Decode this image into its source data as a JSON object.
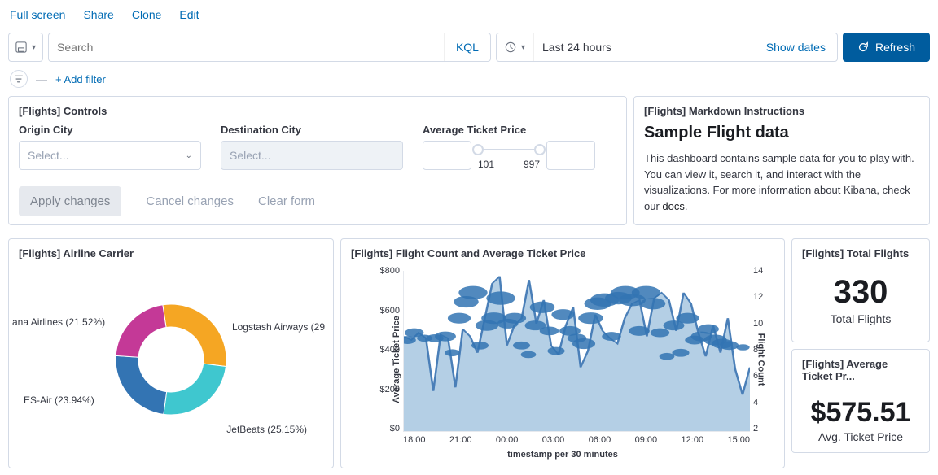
{
  "top_links": {
    "full_screen": "Full screen",
    "share": "Share",
    "clone": "Clone",
    "edit": "Edit"
  },
  "query_bar": {
    "search_placeholder": "Search",
    "kql": "KQL",
    "time_label": "Last 24 hours",
    "show_dates": "Show dates",
    "refresh": "Refresh"
  },
  "filter_bar": {
    "add_filter": "+ Add filter"
  },
  "controls_panel": {
    "title": "[Flights] Controls",
    "origin_label": "Origin City",
    "dest_label": "Destination City",
    "price_label": "Average Ticket Price",
    "select_placeholder": "Select...",
    "slider_min": "101",
    "slider_max": "997",
    "apply": "Apply changes",
    "cancel": "Cancel changes",
    "clear": "Clear form"
  },
  "markdown_panel": {
    "title": "[Flights] Markdown Instructions",
    "heading": "Sample Flight data",
    "body_1": "This dashboard contains sample data for you to play with. You can view it, search it, and interact with the visualizations. For more information about Kibana, check our ",
    "docs_link": "docs",
    "body_2": "."
  },
  "airline_panel": {
    "title": "[Flights] Airline Carrier",
    "donut": {
      "segments": [
        {
          "label": "Logstash Airways (29",
          "value": 29.39,
          "color": "#f5a623"
        },
        {
          "label": "JetBeats (25.15%)",
          "value": 25.15,
          "color": "#3fc7cf"
        },
        {
          "label": "ES-Air (23.94%)",
          "value": 23.94,
          "color": "#3374b3"
        },
        {
          "label": "ana Airlines (21.52%)",
          "value": 21.52,
          "color": "#c43997"
        }
      ],
      "inner_radius": 40,
      "outer_radius": 68
    }
  },
  "combo_panel": {
    "title": "[Flights] Flight Count and Average Ticket Price",
    "y_ticks": [
      "$800",
      "$600",
      "$400",
      "$200",
      "$0"
    ],
    "y2_ticks": [
      "14",
      "12",
      "10",
      "8",
      "6",
      "4",
      "2"
    ],
    "x_ticks": [
      "18:00",
      "21:00",
      "00:00",
      "03:00",
      "06:00",
      "09:00",
      "12:00",
      "15:00"
    ],
    "y_title": "Average Ticket Price",
    "y2_title": "Flight Count",
    "x_title": "timestamp per 30 minutes",
    "area_color": "#a7c7e1",
    "area_stroke": "#4a7fb8",
    "bubble_color": "#3374b3",
    "area_values": [
      520,
      500,
      540,
      510,
      220,
      530,
      510,
      240,
      560,
      520,
      430,
      620,
      810,
      850,
      470,
      580,
      620,
      830,
      590,
      720,
      470,
      420,
      580,
      680,
      350,
      440,
      640,
      550,
      510,
      480,
      620,
      700,
      720,
      520,
      730,
      760,
      720,
      550,
      760,
      700,
      540,
      410,
      580,
      430,
      620,
      340,
      200,
      350
    ],
    "bubbles": [
      {
        "x": 0.01,
        "y": 500,
        "c": 6
      },
      {
        "x": 0.03,
        "y": 540,
        "c": 7
      },
      {
        "x": 0.06,
        "y": 510,
        "c": 5
      },
      {
        "x": 0.09,
        "y": 510,
        "c": 6
      },
      {
        "x": 0.12,
        "y": 520,
        "c": 8
      },
      {
        "x": 0.14,
        "y": 430,
        "c": 5
      },
      {
        "x": 0.16,
        "y": 620,
        "c": 9
      },
      {
        "x": 0.18,
        "y": 710,
        "c": 10
      },
      {
        "x": 0.2,
        "y": 760,
        "c": 12
      },
      {
        "x": 0.22,
        "y": 470,
        "c": 6
      },
      {
        "x": 0.24,
        "y": 580,
        "c": 9
      },
      {
        "x": 0.26,
        "y": 620,
        "c": 10
      },
      {
        "x": 0.28,
        "y": 730,
        "c": 12
      },
      {
        "x": 0.3,
        "y": 590,
        "c": 8
      },
      {
        "x": 0.32,
        "y": 620,
        "c": 9
      },
      {
        "x": 0.34,
        "y": 470,
        "c": 6
      },
      {
        "x": 0.36,
        "y": 420,
        "c": 5
      },
      {
        "x": 0.38,
        "y": 580,
        "c": 8
      },
      {
        "x": 0.4,
        "y": 680,
        "c": 10
      },
      {
        "x": 0.42,
        "y": 550,
        "c": 7
      },
      {
        "x": 0.44,
        "y": 440,
        "c": 6
      },
      {
        "x": 0.46,
        "y": 640,
        "c": 9
      },
      {
        "x": 0.48,
        "y": 550,
        "c": 8
      },
      {
        "x": 0.5,
        "y": 510,
        "c": 7
      },
      {
        "x": 0.52,
        "y": 480,
        "c": 9
      },
      {
        "x": 0.54,
        "y": 620,
        "c": 10
      },
      {
        "x": 0.56,
        "y": 700,
        "c": 11
      },
      {
        "x": 0.58,
        "y": 720,
        "c": 12
      },
      {
        "x": 0.6,
        "y": 520,
        "c": 7
      },
      {
        "x": 0.62,
        "y": 730,
        "c": 11
      },
      {
        "x": 0.64,
        "y": 760,
        "c": 12
      },
      {
        "x": 0.66,
        "y": 720,
        "c": 11
      },
      {
        "x": 0.68,
        "y": 550,
        "c": 8
      },
      {
        "x": 0.7,
        "y": 760,
        "c": 12
      },
      {
        "x": 0.72,
        "y": 700,
        "c": 10
      },
      {
        "x": 0.74,
        "y": 540,
        "c": 7
      },
      {
        "x": 0.76,
        "y": 410,
        "c": 5
      },
      {
        "x": 0.78,
        "y": 580,
        "c": 8
      },
      {
        "x": 0.8,
        "y": 430,
        "c": 6
      },
      {
        "x": 0.82,
        "y": 620,
        "c": 9
      },
      {
        "x": 0.84,
        "y": 500,
        "c": 7
      },
      {
        "x": 0.86,
        "y": 520,
        "c": 8
      },
      {
        "x": 0.88,
        "y": 560,
        "c": 8
      },
      {
        "x": 0.9,
        "y": 500,
        "c": 9
      },
      {
        "x": 0.92,
        "y": 480,
        "c": 8
      },
      {
        "x": 0.94,
        "y": 470,
        "c": 7
      },
      {
        "x": 0.98,
        "y": 460,
        "c": 4
      }
    ]
  },
  "total_flights_panel": {
    "title": "[Flights] Total Flights",
    "value": "330",
    "label": "Total Flights"
  },
  "avg_price_panel": {
    "title": "[Flights] Average Ticket Pr...",
    "value": "$575.51",
    "label": "Avg. Ticket Price"
  },
  "colors": {
    "primary": "#006bb4",
    "refresh_bg": "#005c9e"
  }
}
